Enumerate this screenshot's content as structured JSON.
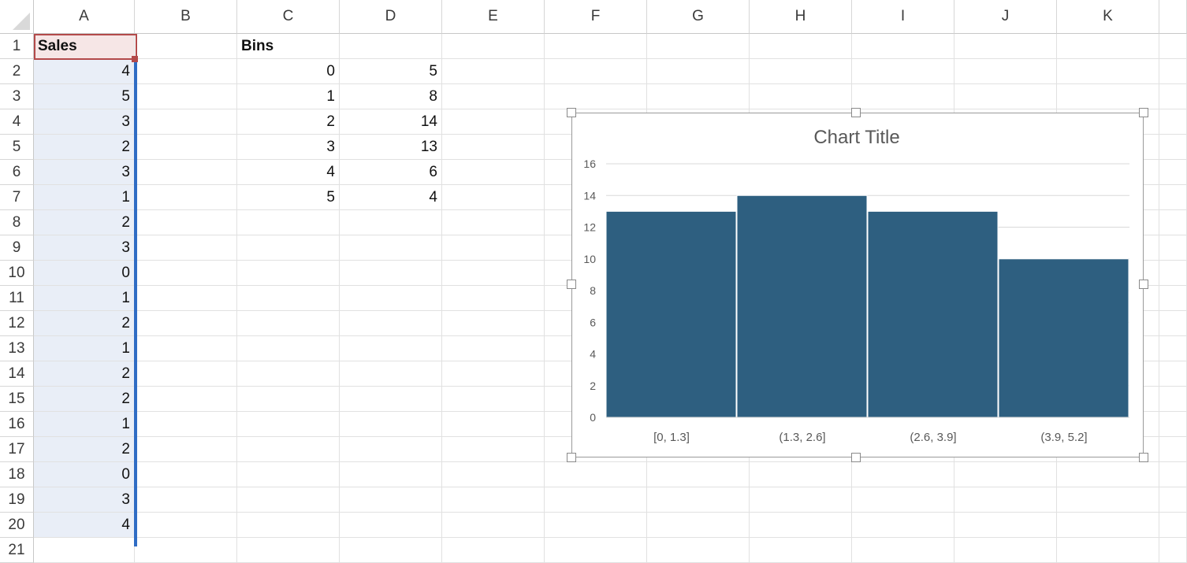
{
  "columns": [
    "A",
    "B",
    "C",
    "D",
    "E",
    "F",
    "G",
    "H",
    "I",
    "J",
    "K"
  ],
  "rows": [
    "1",
    "2",
    "3",
    "4",
    "5",
    "6",
    "7",
    "8",
    "9",
    "10",
    "11",
    "12",
    "13",
    "14",
    "15",
    "16",
    "17",
    "18",
    "19",
    "20",
    "21"
  ],
  "cells": {
    "A1": "Sales",
    "A2": "4",
    "A3": "5",
    "A4": "3",
    "A5": "2",
    "A6": "3",
    "A7": "1",
    "A8": "2",
    "A9": "3",
    "A10": "0",
    "A11": "1",
    "A12": "2",
    "A13": "1",
    "A14": "2",
    "A15": "2",
    "A16": "1",
    "A17": "2",
    "A18": "0",
    "A19": "3",
    "A20": "4",
    "C1": "Bins",
    "C2": "0",
    "C3": "1",
    "C4": "2",
    "C5": "3",
    "C6": "4",
    "C7": "5",
    "D2": "5",
    "D3": "8",
    "D4": "14",
    "D5": "13",
    "D6": "6",
    "D7": "4"
  },
  "selection": {
    "range": "A1:A20",
    "active_cell": "A1"
  },
  "colors": {
    "bar": "#2e5f80",
    "selection_border": "#2f6cc4",
    "active_border": "#b34a4a"
  },
  "chart_data": {
    "type": "bar",
    "title": "Chart Title",
    "categories": [
      "[0, 1.3]",
      "(1.3, 2.6]",
      "(2.6, 3.9]",
      "(3.9, 5.2]"
    ],
    "values": [
      13,
      14,
      13,
      10
    ],
    "ylim": [
      0,
      16
    ],
    "yticks": [
      0,
      2,
      4,
      6,
      8,
      10,
      12,
      14,
      16
    ],
    "grid": true,
    "xlabel": "",
    "ylabel": ""
  }
}
